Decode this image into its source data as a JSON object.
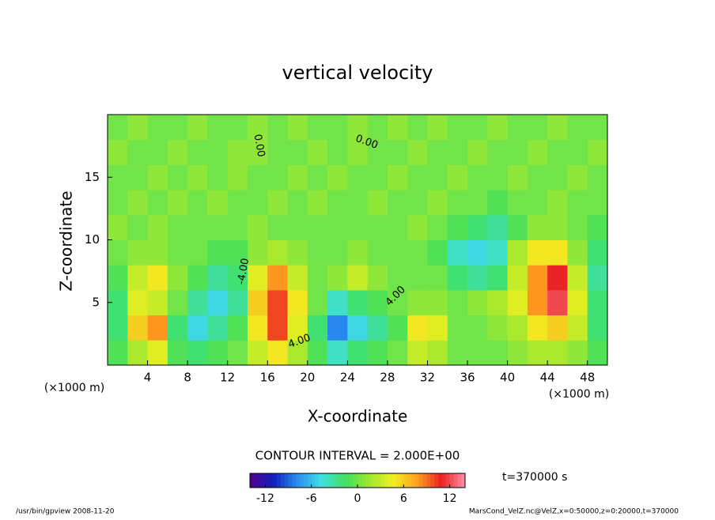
{
  "chart_data": {
    "type": "heatmap",
    "title": "vertical velocity",
    "x_label": "X-coordinate",
    "y_label": "Z-coordinate",
    "x_unit": "(×1000 m)",
    "y_unit": "(×1000 m)",
    "x": [
      1,
      3,
      5,
      7,
      9,
      11,
      13,
      15,
      17,
      19,
      21,
      23,
      25,
      27,
      29,
      31,
      33,
      35,
      37,
      39,
      41,
      43,
      45,
      47,
      49
    ],
    "z": [
      1,
      3,
      5,
      7,
      9,
      11,
      13,
      15,
      17,
      19
    ],
    "values": [
      [
        -1,
        2,
        4,
        -1,
        -2,
        -1,
        0,
        3,
        5,
        2,
        -1,
        -4,
        -2,
        -1,
        0,
        3,
        2,
        0,
        0,
        0,
        1,
        2,
        2,
        1,
        -1
      ],
      [
        -2,
        6,
        8,
        -2,
        -5,
        -3,
        -1,
        5,
        10,
        4,
        -2,
        -8,
        -5,
        -3,
        -1,
        5,
        4,
        0,
        0,
        1,
        2,
        5,
        6,
        3,
        -2
      ],
      [
        -2,
        4,
        3,
        0,
        -3,
        -5,
        -3,
        6,
        10,
        5,
        0,
        -4,
        -2,
        -1,
        0,
        1,
        1,
        0,
        1,
        2,
        4,
        8,
        12,
        4,
        -2
      ],
      [
        -1,
        3,
        5,
        1,
        -1,
        -3,
        -2,
        4,
        8,
        3,
        0,
        1,
        3,
        1,
        0,
        0,
        0,
        -2,
        -3,
        -2,
        3,
        8,
        11,
        3,
        -3
      ],
      [
        0,
        1,
        1,
        0,
        0,
        -1,
        -1,
        1,
        2,
        1,
        0,
        0,
        1,
        0,
        0,
        0,
        -1,
        -4,
        -5,
        -4,
        2,
        5,
        5,
        1,
        -2
      ],
      [
        1,
        0,
        1,
        0,
        0,
        0,
        0,
        1,
        0,
        0,
        0,
        0,
        0,
        0,
        0,
        1,
        0,
        -1,
        -2,
        -3,
        -1,
        1,
        1,
        0,
        -1
      ],
      [
        0,
        1,
        0,
        1,
        0,
        1,
        0,
        0,
        1,
        0,
        1,
        0,
        0,
        1,
        0,
        0,
        1,
        0,
        0,
        -1,
        0,
        0,
        1,
        0,
        0
      ],
      [
        0,
        0,
        1,
        0,
        1,
        0,
        1,
        0,
        0,
        1,
        0,
        1,
        0,
        0,
        1,
        0,
        0,
        1,
        0,
        0,
        1,
        0,
        0,
        1,
        0
      ],
      [
        1,
        0,
        0,
        1,
        0,
        0,
        1,
        1,
        0,
        0,
        1,
        0,
        1,
        0,
        0,
        1,
        0,
        0,
        1,
        0,
        0,
        1,
        0,
        0,
        1
      ],
      [
        0,
        1,
        0,
        0,
        1,
        0,
        0,
        1,
        0,
        1,
        0,
        0,
        1,
        0,
        1,
        0,
        1,
        0,
        0,
        1,
        0,
        0,
        1,
        0,
        0
      ]
    ],
    "xlim": [
      0,
      50
    ],
    "ylim": [
      0,
      20
    ],
    "xticks": [
      4,
      8,
      12,
      16,
      20,
      24,
      28,
      32,
      36,
      40,
      44,
      48
    ],
    "yticks": [
      5,
      10,
      15
    ],
    "colorbar_lim": [
      -14,
      14
    ],
    "colorbar_ticks": [
      -12,
      -6,
      0,
      6,
      12
    ],
    "colormap": [
      "#50008a",
      "#1020c0",
      "#2a90f0",
      "#40e0e0",
      "#40e060",
      "#a0e830",
      "#f0f020",
      "#ffa020",
      "#e82020",
      "#ff90a8"
    ],
    "contour_labels": [
      "0.00",
      "0.00",
      "4.00",
      "4.00",
      "-4.00"
    ],
    "contour_interval": "CONTOUR INTERVAL = 2.000E+00",
    "time_label": "t=370000 s",
    "footer_left": "/usr/bin/gpview  2008-11-20",
    "footer_right": "MarsCond_VelZ.nc@VelZ,x=0:50000,z=0:20000,t=370000"
  }
}
